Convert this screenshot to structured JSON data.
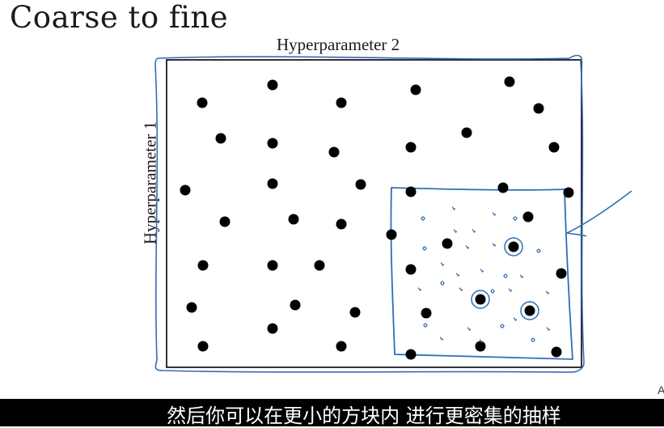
{
  "title": "Coarse to fine",
  "axes": {
    "x_label": "Hyperparameter 2",
    "y_label": "Hyperparameter 1"
  },
  "corner_letter": "A",
  "subtitle": "然后你可以在更小的方块内 进行更密集的抽样",
  "colors": {
    "ink": "#000000",
    "pen": "#2f6fb3",
    "caption_bg": "#000000",
    "caption_text": "#ffffff"
  },
  "coarse_points": [
    [
      337,
      105
    ],
    [
      514,
      111
    ],
    [
      630,
      101
    ],
    [
      250,
      127
    ],
    [
      422,
      127
    ],
    [
      666,
      134
    ],
    [
      273,
      171
    ],
    [
      337,
      177
    ],
    [
      413,
      188
    ],
    [
      508,
      182
    ],
    [
      577,
      164
    ],
    [
      685,
      182
    ],
    [
      229,
      235
    ],
    [
      337,
      227
    ],
    [
      446,
      228
    ],
    [
      508,
      237
    ],
    [
      622,
      232
    ],
    [
      703,
      238
    ],
    [
      278,
      274
    ],
    [
      363,
      271
    ],
    [
      422,
      277
    ],
    [
      484,
      290
    ],
    [
      553,
      301
    ],
    [
      653,
      268
    ],
    [
      251,
      328
    ],
    [
      337,
      328
    ],
    [
      395,
      328
    ],
    [
      508,
      333
    ],
    [
      694,
      338
    ],
    [
      237,
      380
    ],
    [
      365,
      377
    ],
    [
      439,
      386
    ],
    [
      527,
      387
    ],
    [
      337,
      406
    ],
    [
      251,
      428
    ],
    [
      422,
      428
    ],
    [
      508,
      438
    ],
    [
      594,
      428
    ],
    [
      688,
      435
    ]
  ],
  "best_points": [
    [
      635,
      305
    ],
    [
      594,
      370
    ],
    [
      655,
      384
    ]
  ],
  "fine_points": [
    [
      523,
      270
    ],
    [
      561,
      258
    ],
    [
      611,
      265
    ],
    [
      637,
      270
    ],
    [
      586,
      286
    ],
    [
      563,
      286
    ],
    [
      525,
      307
    ],
    [
      578,
      306
    ],
    [
      611,
      303
    ],
    [
      666,
      310
    ],
    [
      547,
      327
    ],
    [
      596,
      335
    ],
    [
      625,
      341
    ],
    [
      645,
      342
    ],
    [
      566,
      340
    ],
    [
      547,
      350
    ],
    [
      519,
      358
    ],
    [
      570,
      358
    ],
    [
      609,
      360
    ],
    [
      631,
      359
    ],
    [
      677,
      362
    ],
    [
      526,
      402
    ],
    [
      546,
      419
    ],
    [
      580,
      407
    ],
    [
      621,
      403
    ],
    [
      678,
      407
    ],
    [
      595,
      422
    ],
    [
      659,
      420
    ],
    [
      637,
      395
    ]
  ]
}
